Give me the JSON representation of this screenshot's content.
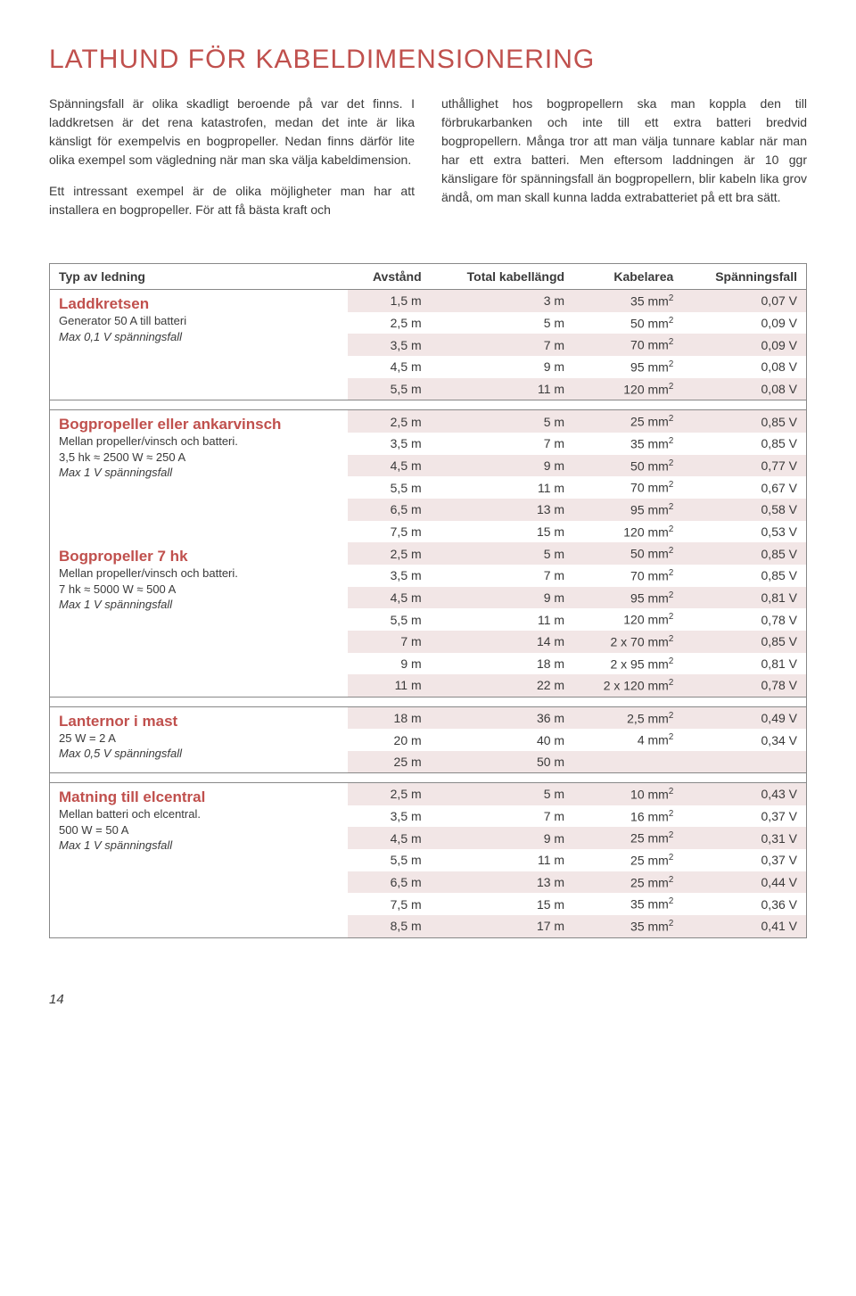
{
  "title": "LATHUND  FÖR  KABELDIMENSIONERING",
  "intro_left": [
    "Spänningsfall är olika skadligt beroende på var det finns. I laddkretsen är det rena katastrofen, medan det inte är lika känsligt för exempelvis en bogpropeller. Nedan finns därför lite olika exempel som vägledning när man ska välja kabeldimension.",
    "Ett intressant exempel är de olika möjligheter man har att installera en bogpropeller. För att få bästa kraft och"
  ],
  "intro_right": [
    "uthållighet hos bogpropellern ska man koppla den till förbrukarbanken och inte till ett extra batteri bredvid bogpropellern. Många tror att man välja tunnare kablar när man har ett extra batteri. Men eftersom laddningen är 10 ggr känsligare för spänningsfall än bogpropellern, blir kabeln lika grov ändå, om man skall kunna ladda extrabatteriet på ett bra sätt."
  ],
  "headers": [
    "Typ av ledning",
    "Avstånd",
    "Total kabellängd",
    "Kabelarea",
    "Spänningsfall"
  ],
  "groups": [
    {
      "name": "Laddkretsen",
      "sub": "Generator 50 A till batteri",
      "italic": "Max 0,1 V spänningsfall",
      "rows": [
        [
          "1,5 m",
          "3 m",
          "35 mm²",
          "0,07 V",
          true
        ],
        [
          "2,5 m",
          "5 m",
          "50 mm²",
          "0,09 V",
          false
        ],
        [
          "3,5 m",
          "7 m",
          "70 mm²",
          "0,09 V",
          true
        ],
        [
          "4,5 m",
          "9 m",
          "95 mm²",
          "0,08 V",
          false
        ],
        [
          "5,5 m",
          "11 m",
          "120 mm²",
          "0,08 V",
          true
        ]
      ]
    },
    {
      "name": "Bogpropeller eller ankarvinsch",
      "sub": "Mellan propeller/vinsch och batteri.\n3,5 hk ≈ 2500 W ≈ 250 A",
      "italic": "Max 1 V spänningsfall",
      "rows": [
        [
          "2,5 m",
          "5 m",
          "25 mm²",
          "0,85 V",
          true
        ],
        [
          "3,5 m",
          "7 m",
          "35 mm²",
          "0,85 V",
          false
        ],
        [
          "4,5 m",
          "9 m",
          "50 mm²",
          "0,77 V",
          true
        ],
        [
          "5,5 m",
          "11 m",
          "70 mm²",
          "0,67 V",
          false
        ],
        [
          "6,5 m",
          "13 m",
          "95 mm²",
          "0,58 V",
          true
        ],
        [
          "7,5 m",
          "15 m",
          "120 mm²",
          "0,53 V",
          false
        ]
      ]
    },
    {
      "name": "Bogpropeller 7 hk",
      "sub": "Mellan propeller/vinsch och batteri.\n7 hk ≈ 5000 W ≈ 500 A",
      "italic": "Max 1 V spänningsfall",
      "no_sep": true,
      "rows": [
        [
          "2,5 m",
          "5 m",
          "50 mm²",
          "0,85 V",
          true
        ],
        [
          "3,5 m",
          "7 m",
          "70 mm²",
          "0,85 V",
          false
        ],
        [
          "4,5 m",
          "9 m",
          "95 mm²",
          "0,81 V",
          true
        ],
        [
          "5,5 m",
          "11 m",
          "120 mm²",
          "0,78 V",
          false
        ],
        [
          "7 m",
          "14 m",
          "2 x 70 mm²",
          "0,85 V",
          true
        ],
        [
          "9 m",
          "18 m",
          "2 x 95 mm²",
          "0,81 V",
          false
        ],
        [
          "11 m",
          "22 m",
          "2 x 120 mm²",
          "0,78 V",
          true
        ]
      ]
    },
    {
      "name": "Lanternor i mast",
      "sub": "25 W = 2 A",
      "italic": "Max 0,5 V spänningsfall",
      "rows": [
        [
          "18 m",
          "36 m",
          "2,5 mm²",
          "0,49 V",
          true
        ],
        [
          "20 m",
          "40 m",
          "4 mm²",
          "0,34 V",
          false
        ],
        [
          "25 m",
          "50 m",
          "",
          "",
          true
        ]
      ]
    },
    {
      "name": "Matning till elcentral",
      "sub": "Mellan batteri och elcentral.\n500 W = 50 A",
      "italic": "Max 1 V spänningsfall",
      "rows": [
        [
          "2,5 m",
          "5 m",
          "10 mm²",
          "0,43 V",
          true
        ],
        [
          "3,5 m",
          "7 m",
          "16 mm²",
          "0,37 V",
          false
        ],
        [
          "4,5 m",
          "9 m",
          "25 mm²",
          "0,31 V",
          true
        ],
        [
          "5,5 m",
          "11 m",
          "25 mm²",
          "0,37 V",
          false
        ],
        [
          "6,5 m",
          "13 m",
          "25 mm²",
          "0,44 V",
          true
        ],
        [
          "7,5 m",
          "15 m",
          "35 mm²",
          "0,36 V",
          false
        ],
        [
          "8,5 m",
          "17 m",
          "35 mm²",
          "0,41 V",
          true
        ]
      ]
    }
  ],
  "page_number": "14",
  "colors": {
    "accent": "#c0504d",
    "shade": "#f2e6e6",
    "border": "#888888",
    "text": "#3a3a3a"
  }
}
